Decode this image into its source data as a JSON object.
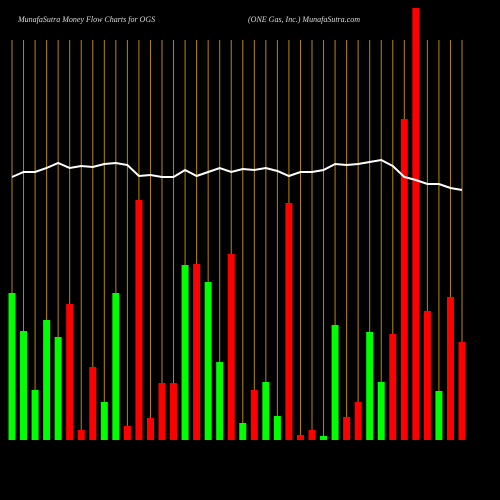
{
  "chart_data": {
    "type": "bar",
    "title": "MunafaSutra  Money Flow  Charts for OGS",
    "subtitle": "(ONE Gas,  Inc.) MunafaSutra.com",
    "values": [
      147,
      109,
      50,
      120,
      103,
      136,
      10,
      73,
      38,
      147,
      14,
      240,
      22,
      57,
      57,
      175,
      176,
      158,
      78,
      186,
      17,
      50,
      58,
      24,
      237,
      5,
      10,
      4,
      115,
      23,
      38,
      108,
      58,
      106,
      321,
      432,
      129,
      49,
      143,
      98
    ],
    "colors": [
      "#00ff00",
      "#00ff00",
      "#00ff00",
      "#00ff00",
      "#00ff00",
      "#ff0000",
      "#ff0000",
      "#ff0000",
      "#00ff00",
      "#00ff00",
      "#ff0000",
      "#ff0000",
      "#ff0000",
      "#ff0000",
      "#ff0000",
      "#00ff00",
      "#ff0000",
      "#00ff00",
      "#00ff00",
      "#ff0000",
      "#00ff00",
      "#ff0000",
      "#00ff00",
      "#00ff00",
      "#ff0000",
      "#ff0000",
      "#ff0000",
      "#00ff00",
      "#00ff00",
      "#ff0000",
      "#ff0000",
      "#00ff00",
      "#00ff00",
      "#ff0000",
      "#ff0000",
      "#ff0000",
      "#ff0000",
      "#00ff00",
      "#ff0000",
      "#ff0000"
    ],
    "line": {
      "color": "#ffffff",
      "values": [
        263,
        268,
        268,
        272,
        277,
        272,
        274,
        273,
        276,
        277,
        275,
        264,
        265,
        263,
        263,
        270,
        264,
        268,
        272,
        268,
        271,
        270,
        272,
        269,
        264,
        268,
        268,
        270,
        276,
        275,
        276,
        278,
        280,
        274,
        263,
        260,
        256,
        256,
        252,
        250
      ]
    },
    "grid_color": "#b8860b",
    "ylim": [
      0,
      440
    ]
  }
}
